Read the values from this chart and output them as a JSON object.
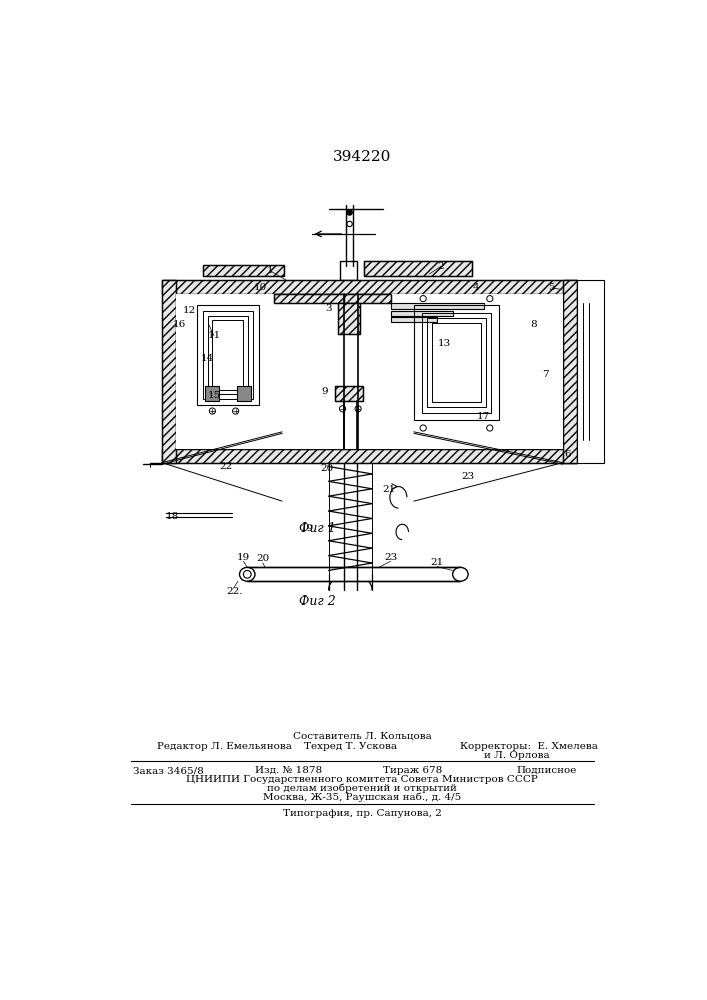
{
  "patent_number": "394220",
  "fig1_label": "Фиг 1",
  "fig2_label": "Фиг 2",
  "footer_line1_center": "Составитель Л. Кольцова",
  "footer_line2_left": "Редактор Л. Емельянова",
  "footer_line2_center": "Техред Т. Ускова",
  "footer_line2_right": "Корректоры:  Е. Хмелева",
  "footer_line3_right": "и Л. Орлова",
  "footer_line4_left": "Заказ 3465/8",
  "footer_line4_c1": "Изд. № 1878",
  "footer_line4_c2": "Тираж 678",
  "footer_line4_right": "Подписное",
  "footer_line5": "ЦНИИПИ Государственного комитета Совета Министров СССР",
  "footer_line6": "по делам изобретений и открытий",
  "footer_line7": "Москва, Ж-35, Раушская наб., д. 4/5",
  "footer_line8": "Типография, пр. Сапунова, 2",
  "bg_color": "#ffffff"
}
